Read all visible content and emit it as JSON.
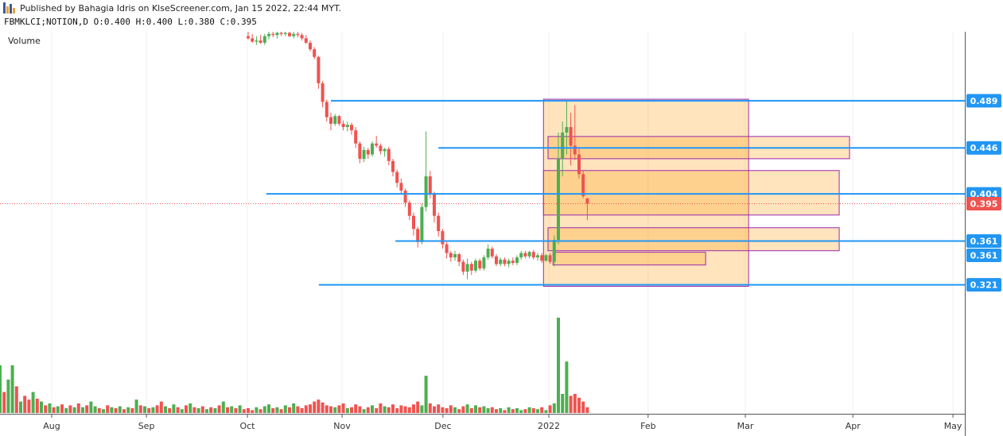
{
  "chart_data": {
    "type": "candlestick",
    "title": "Published by Bahagia Idris on KlseScreener.com, Jan 15 2022, 22:44 MYT.",
    "subtitle": "FBMKLCI;NOTION,D  O:0.400 H:0.400 L:0.380 C:0.395",
    "volume_label": "Volume",
    "xlim": [
      0,
      233.27
    ],
    "ylim": [
      0.204,
      0.552
    ],
    "volume_lim": [
      0,
      100
    ],
    "xticks": [
      {
        "value": 12.5,
        "label": "Aug"
      },
      {
        "value": 35.4,
        "label": "Sep"
      },
      {
        "value": 59.8,
        "label": "Oct"
      },
      {
        "value": 82.7,
        "label": "Nov"
      },
      {
        "value": 107.1,
        "label": "Dec"
      },
      {
        "value": 132.7,
        "label": "2022"
      },
      {
        "value": 156.7,
        "label": "Feb"
      },
      {
        "value": 180.2,
        "label": "Mar"
      },
      {
        "value": 206.2,
        "label": "Apr"
      },
      {
        "value": 230.4,
        "label": "May"
      }
    ],
    "grid": true,
    "up_color": "#4caf50",
    "down_color": "#ef5350",
    "x": [
      0,
      1,
      2,
      3,
      4,
      5,
      6,
      7,
      8,
      9,
      10,
      11,
      12,
      13,
      14,
      15,
      16,
      17,
      18,
      19,
      20,
      21,
      22,
      23,
      24,
      25,
      26,
      27,
      28,
      29,
      30,
      31,
      32,
      33,
      34,
      35,
      36,
      37,
      38,
      39,
      40,
      41,
      42,
      43,
      44,
      45,
      46,
      47,
      48,
      49,
      50,
      51,
      52,
      53,
      54,
      55,
      56,
      57,
      58,
      59,
      60,
      61,
      62,
      63,
      64,
      65,
      66,
      67,
      68,
      69,
      70,
      71,
      72,
      73,
      74,
      75,
      76,
      77,
      78,
      79,
      80,
      81,
      82,
      83,
      84,
      85,
      86,
      87,
      88,
      89,
      90,
      91,
      92,
      93,
      94,
      95,
      96,
      97,
      98,
      99,
      100,
      101,
      102,
      103,
      104,
      105,
      106,
      107,
      108,
      109,
      110,
      111,
      112,
      113,
      114,
      115,
      116,
      117,
      118,
      119,
      120,
      121,
      122,
      123,
      124,
      125,
      126,
      127,
      128,
      129,
      130,
      131,
      132,
      133,
      134,
      135,
      136,
      137,
      138,
      139,
      140,
      141,
      142
    ],
    "ohlc": [
      null,
      null,
      null,
      null,
      null,
      null,
      null,
      null,
      null,
      null,
      null,
      null,
      null,
      null,
      null,
      null,
      null,
      null,
      null,
      null,
      null,
      null,
      null,
      null,
      null,
      null,
      null,
      null,
      null,
      null,
      null,
      null,
      null,
      null,
      null,
      null,
      null,
      null,
      null,
      null,
      null,
      null,
      null,
      null,
      null,
      null,
      null,
      null,
      null,
      null,
      null,
      null,
      null,
      null,
      null,
      null,
      null,
      null,
      null,
      null,
      [
        0.548,
        0.552,
        0.545,
        0.546
      ],
      [
        0.546,
        0.55,
        0.542,
        0.543
      ],
      [
        0.543,
        0.548,
        0.54,
        0.544
      ],
      [
        0.544,
        0.549,
        0.541,
        0.542
      ],
      [
        0.542,
        0.55,
        0.54,
        0.548
      ],
      [
        0.548,
        0.552,
        0.545,
        0.55
      ],
      [
        0.55,
        0.552,
        0.547,
        0.549
      ],
      [
        0.549,
        0.552,
        0.546,
        0.551
      ],
      [
        0.551,
        0.553,
        0.548,
        0.55
      ],
      [
        0.55,
        0.553,
        0.548,
        0.551
      ],
      [
        0.551,
        0.553,
        0.547,
        0.548
      ],
      [
        0.548,
        0.552,
        0.546,
        0.55
      ],
      [
        0.55,
        0.552,
        0.547,
        0.549
      ],
      [
        0.549,
        0.551,
        0.544,
        0.546
      ],
      [
        0.546,
        0.549,
        0.541,
        0.542
      ],
      [
        0.542,
        0.544,
        0.534,
        0.536
      ],
      [
        0.536,
        0.538,
        0.527,
        0.529
      ],
      [
        0.529,
        0.53,
        0.5,
        0.505
      ],
      [
        0.505,
        0.507,
        0.483,
        0.488
      ],
      [
        0.488,
        0.49,
        0.47,
        0.474
      ],
      [
        0.474,
        0.478,
        0.462,
        0.468
      ],
      [
        0.468,
        0.477,
        0.466,
        0.475
      ],
      [
        0.475,
        0.476,
        0.466,
        0.468
      ],
      [
        0.468,
        0.471,
        0.462,
        0.465
      ],
      [
        0.465,
        0.47,
        0.461,
        0.467
      ],
      [
        0.467,
        0.469,
        0.458,
        0.462
      ],
      [
        0.462,
        0.465,
        0.446,
        0.45
      ],
      [
        0.45,
        0.452,
        0.432,
        0.436
      ],
      [
        0.436,
        0.447,
        0.433,
        0.444
      ],
      [
        0.444,
        0.446,
        0.436,
        0.44
      ],
      [
        0.44,
        0.452,
        0.438,
        0.45
      ],
      [
        0.45,
        0.457,
        0.446,
        0.448
      ],
      [
        0.448,
        0.45,
        0.44,
        0.443
      ],
      [
        0.443,
        0.446,
        0.438,
        0.445
      ],
      [
        0.445,
        0.447,
        0.43,
        0.434
      ],
      [
        0.434,
        0.436,
        0.42,
        0.424
      ],
      [
        0.424,
        0.426,
        0.41,
        0.414
      ],
      [
        0.414,
        0.418,
        0.404,
        0.407
      ],
      [
        0.407,
        0.409,
        0.392,
        0.396
      ],
      [
        0.396,
        0.398,
        0.38,
        0.384
      ],
      [
        0.384,
        0.387,
        0.366,
        0.372
      ],
      [
        0.372,
        0.374,
        0.355,
        0.36
      ],
      [
        0.36,
        0.395,
        0.358,
        0.392
      ],
      [
        0.392,
        0.461,
        0.388,
        0.42
      ],
      [
        0.42,
        0.425,
        0.4,
        0.404
      ],
      [
        0.404,
        0.406,
        0.378,
        0.384
      ],
      [
        0.384,
        0.387,
        0.365,
        0.37
      ],
      [
        0.37,
        0.372,
        0.354,
        0.358
      ],
      [
        0.358,
        0.36,
        0.345,
        0.35
      ],
      [
        0.35,
        0.352,
        0.342,
        0.346
      ],
      [
        0.346,
        0.352,
        0.343,
        0.349
      ],
      [
        0.349,
        0.35,
        0.338,
        0.342
      ],
      [
        0.342,
        0.344,
        0.33,
        0.333
      ],
      [
        0.333,
        0.345,
        0.326,
        0.34
      ],
      [
        0.34,
        0.342,
        0.33,
        0.334
      ],
      [
        0.334,
        0.345,
        0.332,
        0.343
      ],
      [
        0.343,
        0.345,
        0.334,
        0.336
      ],
      [
        0.336,
        0.348,
        0.334,
        0.346
      ],
      [
        0.346,
        0.358,
        0.344,
        0.354
      ],
      [
        0.354,
        0.356,
        0.345,
        0.347
      ],
      [
        0.347,
        0.349,
        0.338,
        0.34
      ],
      [
        0.34,
        0.346,
        0.338,
        0.344
      ],
      [
        0.344,
        0.346,
        0.338,
        0.34
      ],
      [
        0.34,
        0.345,
        0.337,
        0.343
      ],
      [
        0.343,
        0.346,
        0.339,
        0.341
      ],
      [
        0.341,
        0.348,
        0.339,
        0.346
      ],
      [
        0.346,
        0.352,
        0.344,
        0.35
      ],
      [
        0.35,
        0.352,
        0.345,
        0.347
      ],
      [
        0.347,
        0.352,
        0.345,
        0.351
      ],
      [
        0.351,
        0.353,
        0.344,
        0.346
      ],
      [
        0.346,
        0.35,
        0.343,
        0.348
      ],
      [
        0.348,
        0.35,
        0.341,
        0.343
      ],
      [
        0.343,
        0.349,
        0.342,
        0.348
      ],
      [
        0.348,
        0.35,
        0.34,
        0.342
      ],
      [
        0.342,
        0.366,
        0.338,
        0.362
      ],
      [
        0.362,
        0.46,
        0.358,
        0.436
      ],
      [
        0.436,
        0.47,
        0.42,
        0.46
      ],
      [
        0.46,
        0.489,
        0.44,
        0.465
      ],
      [
        0.465,
        0.478,
        0.43,
        0.448
      ],
      [
        0.448,
        0.485,
        0.435,
        0.44
      ],
      [
        0.44,
        0.445,
        0.418,
        0.422
      ],
      [
        0.422,
        0.425,
        0.4,
        0.402
      ],
      [
        0.4,
        0.4,
        0.38,
        0.395
      ]
    ],
    "volume": [
      50,
      22,
      35,
      50,
      28,
      12,
      18,
      14,
      22,
      15,
      12,
      8,
      10,
      6,
      7,
      9,
      5,
      8,
      6,
      10,
      6,
      8,
      12,
      7,
      5,
      4,
      8,
      6,
      5,
      7,
      4,
      6,
      5,
      14,
      8,
      7,
      5,
      6,
      8,
      12,
      7,
      5,
      9,
      6,
      4,
      8,
      10,
      6,
      5,
      7,
      4,
      6,
      5,
      8,
      12,
      6,
      7,
      5,
      8,
      4,
      5,
      3,
      6,
      4,
      7,
      9,
      5,
      6,
      4,
      8,
      6,
      10,
      7,
      5,
      8,
      9,
      12,
      14,
      11,
      8,
      7,
      6,
      8,
      10,
      5,
      6,
      9,
      7,
      4,
      6,
      8,
      5,
      10,
      7,
      6,
      9,
      5,
      8,
      7,
      6,
      9,
      12,
      8,
      39,
      10,
      7,
      9,
      6,
      5,
      8,
      6,
      4,
      7,
      9,
      5,
      8,
      6,
      7,
      5,
      6,
      4,
      5,
      3,
      6,
      4,
      5,
      3,
      4,
      6,
      5,
      4,
      6,
      3,
      8,
      10,
      100,
      20,
      54,
      18,
      20,
      16,
      12,
      6
    ],
    "volume_colors": [
      "#4caf50",
      "#ef5350",
      "#4caf50",
      "#4caf50",
      "#ef5350",
      "#4caf50",
      "#ef5350",
      "#ef5350",
      "#4caf50",
      "#ef5350",
      "#4caf50",
      "#ef5350",
      "#4caf50",
      "#ef5350",
      "#4caf50",
      "#ef5350",
      "#4caf50",
      "#ef5350",
      "#4caf50",
      "#ef5350",
      "#4caf50",
      "#ef5350",
      "#4caf50",
      "#4caf50",
      "#ef5350",
      "#4caf50",
      "#ef5350",
      "#4caf50",
      "#ef5350",
      "#4caf50",
      "#ef5350",
      "#4caf50",
      "#ef5350",
      "#4caf50",
      "#ef5350",
      "#4caf50",
      "#ef5350",
      "#4caf50",
      "#ef5350",
      "#ef5350",
      "#4caf50",
      "#ef5350",
      "#4caf50",
      "#ef5350",
      "#4caf50",
      "#ef5350",
      "#4caf50",
      "#ef5350",
      "#4caf50",
      "#ef5350",
      "#4caf50",
      "#ef5350",
      "#4caf50",
      "#ef5350",
      "#4caf50",
      "#ef5350",
      "#4caf50",
      "#ef5350",
      "#4caf50",
      "#ef5350",
      "#ef5350",
      "#ef5350",
      "#4caf50",
      "#ef5350",
      "#4caf50",
      "#4caf50",
      "#ef5350",
      "#4caf50",
      "#ef5350",
      "#4caf50",
      "#ef5350",
      "#4caf50",
      "#ef5350",
      "#ef5350",
      "#ef5350",
      "#ef5350",
      "#ef5350",
      "#ef5350",
      "#ef5350",
      "#ef5350",
      "#ef5350",
      "#4caf50",
      "#ef5350",
      "#ef5350",
      "#4caf50",
      "#ef5350",
      "#ef5350",
      "#ef5350",
      "#4caf50",
      "#ef5350",
      "#4caf50",
      "#ef5350",
      "#ef5350",
      "#4caf50",
      "#ef5350",
      "#ef5350",
      "#ef5350",
      "#ef5350",
      "#ef5350",
      "#ef5350",
      "#ef5350",
      "#ef5350",
      "#4caf50",
      "#4caf50",
      "#ef5350",
      "#ef5350",
      "#ef5350",
      "#ef5350",
      "#ef5350",
      "#ef5350",
      "#4caf50",
      "#ef5350",
      "#ef5350",
      "#4caf50",
      "#ef5350",
      "#4caf50",
      "#ef5350",
      "#4caf50",
      "#4caf50",
      "#ef5350",
      "#ef5350",
      "#4caf50",
      "#ef5350",
      "#4caf50",
      "#ef5350",
      "#4caf50",
      "#4caf50",
      "#ef5350",
      "#4caf50",
      "#ef5350",
      "#4caf50",
      "#ef5350",
      "#4caf50",
      "#ef5350",
      "#4caf50",
      "#4caf50",
      "#4caf50",
      "#4caf50",
      "#ef5350",
      "#ef5350",
      "#ef5350",
      "#ef5350",
      "#ef5350"
    ],
    "level_color": "#2196f3",
    "levels": [
      {
        "value": 0.489,
        "from": 80.0
      },
      {
        "value": 0.446,
        "from": 106.0
      },
      {
        "value": 0.404,
        "from": 64.4
      },
      {
        "value": 0.361,
        "from": 95.6
      },
      {
        "value": 0.361,
        "from": 110.6
      },
      {
        "value": 0.321,
        "from": 77.1
      }
    ],
    "last_price": 0.395,
    "last_color": "#ef5350",
    "zone_fill": "rgba(255,167,38,0.3)",
    "zone_stroke": "#9c27b0",
    "zones": [
      {
        "xlim": [
          131.4,
          181.0
        ],
        "ylim": [
          0.3196,
          0.4904
        ]
      },
      {
        "xlim": [
          132.5,
          205.4
        ],
        "ylim": [
          0.4361,
          0.4564
        ]
      },
      {
        "xlim": [
          131.4,
          202.9
        ],
        "ylim": [
          0.3847,
          0.4253
        ]
      },
      {
        "xlim": [
          132.5,
          202.9
        ],
        "ylim": [
          0.3521,
          0.3731
        ]
      },
      {
        "xlim": [
          133.7,
          170.6
        ],
        "ylim": [
          0.3391,
          0.3507
        ]
      }
    ]
  }
}
